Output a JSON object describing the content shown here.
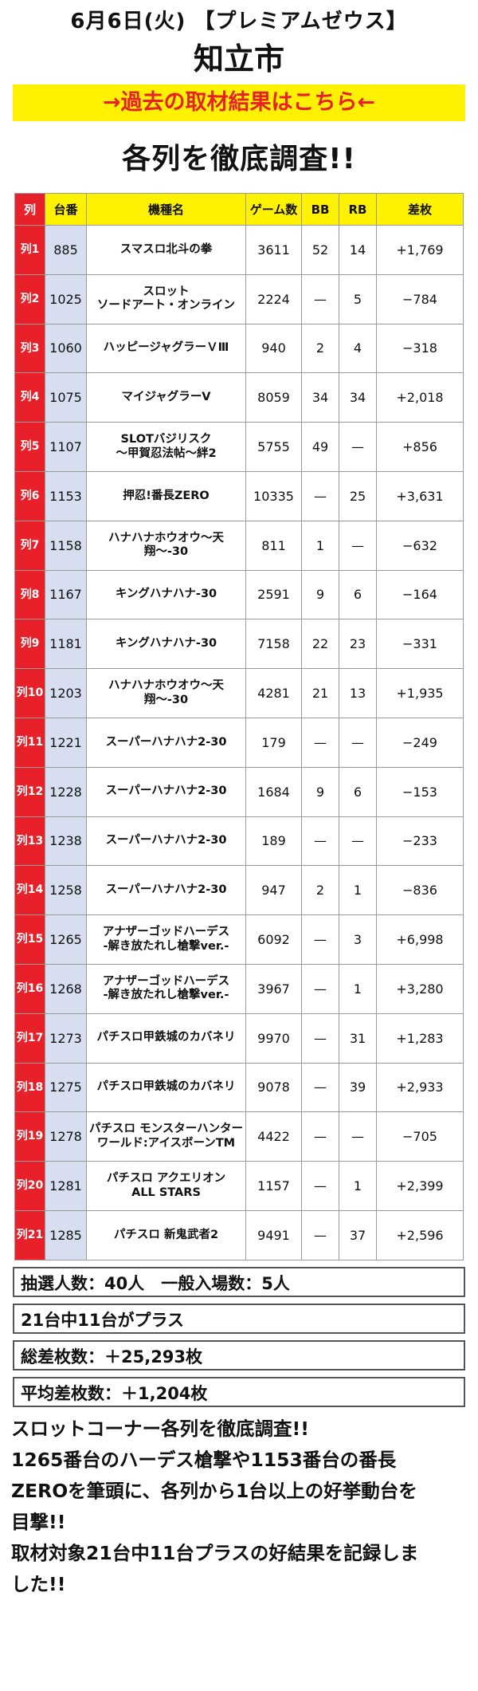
{
  "header": {
    "date_line": "6月6日(火) 【プレミアムゼウス】",
    "city": "知立市"
  },
  "past_link": "→過去の取材結果はこちら←",
  "section_title": "各列を徹底調査!!",
  "table": {
    "headers": [
      "列",
      "台番",
      "機種名",
      "ゲーム数",
      "BB",
      "RB",
      "差枚"
    ],
    "rows": [
      {
        "row": "列1",
        "unit": "885",
        "machine": "スマスロ北斗の拳",
        "games": "3611",
        "bb": "52",
        "rb": "14",
        "diff": "+1,769"
      },
      {
        "row": "列2",
        "unit": "1025",
        "machine": "スロット\nソードアート・オンライン",
        "games": "2224",
        "bb": "—",
        "rb": "5",
        "diff": "−784"
      },
      {
        "row": "列3",
        "unit": "1060",
        "machine": "ハッピージャグラーＶⅢ",
        "games": "940",
        "bb": "2",
        "rb": "4",
        "diff": "−318"
      },
      {
        "row": "列4",
        "unit": "1075",
        "machine": "マイジャグラーV",
        "games": "8059",
        "bb": "34",
        "rb": "34",
        "diff": "+2,018"
      },
      {
        "row": "列5",
        "unit": "1107",
        "machine": "SLOTバジリスク\n〜甲賀忍法帖〜絆2",
        "games": "5755",
        "bb": "49",
        "rb": "—",
        "diff": "+856"
      },
      {
        "row": "列6",
        "unit": "1153",
        "machine": "押忍!番長ZERO",
        "games": "10335",
        "bb": "—",
        "rb": "25",
        "diff": "+3,631"
      },
      {
        "row": "列7",
        "unit": "1158",
        "machine": "ハナハナホウオウ〜天翔〜-30",
        "games": "811",
        "bb": "1",
        "rb": "—",
        "diff": "−632"
      },
      {
        "row": "列8",
        "unit": "1167",
        "machine": "キングハナハナ-30",
        "games": "2591",
        "bb": "9",
        "rb": "6",
        "diff": "−164"
      },
      {
        "row": "列9",
        "unit": "1181",
        "machine": "キングハナハナ-30",
        "games": "7158",
        "bb": "22",
        "rb": "23",
        "diff": "−331"
      },
      {
        "row": "列10",
        "unit": "1203",
        "machine": "ハナハナホウオウ〜天翔〜-30",
        "games": "4281",
        "bb": "21",
        "rb": "13",
        "diff": "+1,935"
      },
      {
        "row": "列11",
        "unit": "1221",
        "machine": "スーパーハナハナ2-30",
        "games": "179",
        "bb": "—",
        "rb": "—",
        "diff": "−249"
      },
      {
        "row": "列12",
        "unit": "1228",
        "machine": "スーパーハナハナ2-30",
        "games": "1684",
        "bb": "9",
        "rb": "6",
        "diff": "−153"
      },
      {
        "row": "列13",
        "unit": "1238",
        "machine": "スーパーハナハナ2-30",
        "games": "189",
        "bb": "—",
        "rb": "—",
        "diff": "−233"
      },
      {
        "row": "列14",
        "unit": "1258",
        "machine": "スーパーハナハナ2-30",
        "games": "947",
        "bb": "2",
        "rb": "1",
        "diff": "−836"
      },
      {
        "row": "列15",
        "unit": "1265",
        "machine": "アナザーゴッドハーデス\n-解き放たれし槍撃ver.-",
        "games": "6092",
        "bb": "—",
        "rb": "3",
        "diff": "+6,998"
      },
      {
        "row": "列16",
        "unit": "1268",
        "machine": "アナザーゴッドハーデス\n-解き放たれし槍撃ver.-",
        "games": "3967",
        "bb": "—",
        "rb": "1",
        "diff": "+3,280"
      },
      {
        "row": "列17",
        "unit": "1273",
        "machine": "パチスロ甲鉄城のカバネリ",
        "games": "9970",
        "bb": "—",
        "rb": "31",
        "diff": "+1,283"
      },
      {
        "row": "列18",
        "unit": "1275",
        "machine": "パチスロ甲鉄城のカバネリ",
        "games": "9078",
        "bb": "—",
        "rb": "39",
        "diff": "+2,933"
      },
      {
        "row": "列19",
        "unit": "1278",
        "machine": "パチスロ モンスターハンター\nワールド:アイスボーンTM",
        "games": "4422",
        "bb": "—",
        "rb": "—",
        "diff": "−705"
      },
      {
        "row": "列20",
        "unit": "1281",
        "machine": "パチスロ アクエリオン\nALL STARS",
        "games": "1157",
        "bb": "—",
        "rb": "1",
        "diff": "+2,399"
      },
      {
        "row": "列21",
        "unit": "1285",
        "machine": "パチスロ 新鬼武者2",
        "games": "9491",
        "bb": "—",
        "rb": "37",
        "diff": "+2,596"
      }
    ]
  },
  "summary": [
    "抽選人数：40人　一般入場数：5人",
    "21台中11台がプラス",
    "総差枚数：＋25,293枚",
    "平均差枚数：＋1,204枚"
  ],
  "comment": [
    "スロットコーナー各列を徹底調査!!",
    "1265番台のハーデス槍撃や1153番台の番長",
    "ZEROを筆頭に、各列から1台以上の好挙動台を",
    "目撃!!",
    "取材対象21台中11台プラスの好結果を記録しま",
    "した!!"
  ],
  "colors": {
    "accent_red": "#e8202a",
    "highlight_yellow": "#fff200",
    "unit_blue": "#d6deef"
  }
}
